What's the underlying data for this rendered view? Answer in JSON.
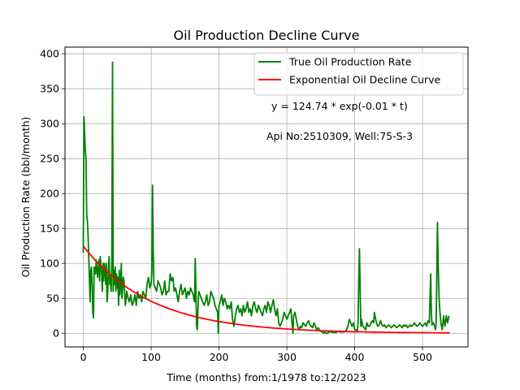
{
  "chart_data": {
    "type": "line",
    "title": "Oil Production Decline Curve",
    "xlabel": "Time (months) from:1/1978 to:12/2023",
    "ylabel": "Oil Production Rate (bbl/month)",
    "xlim": [
      -27,
      567
    ],
    "ylim": [
      -19.5,
      409.5
    ],
    "grid": true,
    "legend_position": "top-right",
    "x_ticks": [
      0,
      100,
      200,
      300,
      400,
      500
    ],
    "y_ticks": [
      0,
      50,
      100,
      150,
      200,
      250,
      300,
      350,
      400
    ],
    "annotations": [
      "y = 124.74 * exp(-0.01 * t)",
      "Api No:2510309, Well:75-S-3"
    ],
    "series": [
      {
        "name": "True Oil Production Rate",
        "color": "#008000",
        "points": [
          [
            0,
            115
          ],
          [
            1,
            310
          ],
          [
            2,
            285
          ],
          [
            3,
            260
          ],
          [
            4,
            250
          ],
          [
            5,
            170
          ],
          [
            6,
            160
          ],
          [
            7,
            140
          ],
          [
            8,
            110
          ],
          [
            9,
            75
          ],
          [
            10,
            45
          ],
          [
            11,
            90
          ],
          [
            12,
            95
          ],
          [
            13,
            70
          ],
          [
            14,
            30
          ],
          [
            15,
            22
          ],
          [
            16,
            95
          ],
          [
            17,
            90
          ],
          [
            18,
            85
          ],
          [
            19,
            105
          ],
          [
            20,
            95
          ],
          [
            21,
            80
          ],
          [
            22,
            90
          ],
          [
            23,
            105
          ],
          [
            24,
            75
          ],
          [
            25,
            110
          ],
          [
            26,
            95
          ],
          [
            27,
            85
          ],
          [
            28,
            60
          ],
          [
            29,
            100
          ],
          [
            30,
            75
          ],
          [
            31,
            100
          ],
          [
            32,
            90
          ],
          [
            33,
            70
          ],
          [
            34,
            100
          ],
          [
            35,
            45
          ],
          [
            36,
            60
          ],
          [
            37,
            90
          ],
          [
            38,
            110
          ],
          [
            39,
            70
          ],
          [
            40,
            80
          ],
          [
            41,
            60
          ],
          [
            42,
            100
          ],
          [
            43,
            388
          ],
          [
            44,
            60
          ],
          [
            45,
            90
          ],
          [
            46,
            70
          ],
          [
            47,
            95
          ],
          [
            48,
            60
          ],
          [
            49,
            85
          ],
          [
            50,
            65
          ],
          [
            51,
            80
          ],
          [
            52,
            40
          ],
          [
            53,
            90
          ],
          [
            54,
            55
          ],
          [
            55,
            70
          ],
          [
            56,
            100
          ],
          [
            57,
            50
          ],
          [
            58,
            65
          ],
          [
            59,
            80
          ],
          [
            60,
            75
          ],
          [
            62,
            40
          ],
          [
            64,
            60
          ],
          [
            66,
            50
          ],
          [
            68,
            45
          ],
          [
            70,
            55
          ],
          [
            72,
            40
          ],
          [
            74,
            45
          ],
          [
            76,
            55
          ],
          [
            78,
            40
          ],
          [
            80,
            60
          ],
          [
            82,
            50
          ],
          [
            84,
            55
          ],
          [
            86,
            45
          ],
          [
            88,
            60
          ],
          [
            90,
            55
          ],
          [
            92,
            50
          ],
          [
            94,
            70
          ],
          [
            96,
            80
          ],
          [
            98,
            65
          ],
          [
            100,
            70
          ],
          [
            101,
            90
          ],
          [
            102,
            212
          ],
          [
            103,
            120
          ],
          [
            104,
            70
          ],
          [
            106,
            65
          ],
          [
            108,
            60
          ],
          [
            110,
            75
          ],
          [
            112,
            70
          ],
          [
            114,
            65
          ],
          [
            116,
            55
          ],
          [
            118,
            60
          ],
          [
            120,
            75
          ],
          [
            122,
            55
          ],
          [
            124,
            60
          ],
          [
            126,
            60
          ],
          [
            128,
            85
          ],
          [
            130,
            75
          ],
          [
            132,
            80
          ],
          [
            134,
            60
          ],
          [
            136,
            65
          ],
          [
            138,
            55
          ],
          [
            140,
            45
          ],
          [
            142,
            60
          ],
          [
            144,
            70
          ],
          [
            146,
            55
          ],
          [
            148,
            60
          ],
          [
            150,
            65
          ],
          [
            152,
            50
          ],
          [
            154,
            60
          ],
          [
            156,
            55
          ],
          [
            158,
            65
          ],
          [
            160,
            60
          ],
          [
            162,
            55
          ],
          [
            164,
            45
          ],
          [
            165,
            107
          ],
          [
            166,
            55
          ],
          [
            167,
            10
          ],
          [
            168,
            5
          ],
          [
            170,
            60
          ],
          [
            172,
            55
          ],
          [
            174,
            50
          ],
          [
            176,
            45
          ],
          [
            178,
            40
          ],
          [
            180,
            45
          ],
          [
            182,
            55
          ],
          [
            184,
            40
          ],
          [
            186,
            45
          ],
          [
            188,
            60
          ],
          [
            190,
            55
          ],
          [
            192,
            50
          ],
          [
            194,
            40
          ],
          [
            196,
            35
          ],
          [
            198,
            30
          ],
          [
            199,
            0
          ],
          [
            200,
            40
          ],
          [
            202,
            45
          ],
          [
            204,
            55
          ],
          [
            206,
            40
          ],
          [
            208,
            50
          ],
          [
            210,
            45
          ],
          [
            212,
            35
          ],
          [
            214,
            40
          ],
          [
            216,
            35
          ],
          [
            218,
            45
          ],
          [
            220,
            20
          ],
          [
            222,
            10
          ],
          [
            224,
            25
          ],
          [
            226,
            35
          ],
          [
            228,
            40
          ],
          [
            230,
            30
          ],
          [
            232,
            35
          ],
          [
            234,
            25
          ],
          [
            236,
            40
          ],
          [
            238,
            30
          ],
          [
            240,
            35
          ],
          [
            242,
            45
          ],
          [
            244,
            30
          ],
          [
            246,
            35
          ],
          [
            248,
            25
          ],
          [
            250,
            40
          ],
          [
            252,
            45
          ],
          [
            254,
            35
          ],
          [
            256,
            30
          ],
          [
            258,
            40
          ],
          [
            260,
            35
          ],
          [
            262,
            30
          ],
          [
            264,
            25
          ],
          [
            266,
            35
          ],
          [
            268,
            40
          ],
          [
            270,
            30
          ],
          [
            272,
            45
          ],
          [
            274,
            40
          ],
          [
            276,
            30
          ],
          [
            278,
            40
          ],
          [
            280,
            48
          ],
          [
            282,
            35
          ],
          [
            284,
            25
          ],
          [
            286,
            35
          ],
          [
            288,
            15
          ],
          [
            290,
            10
          ],
          [
            292,
            15
          ],
          [
            294,
            20
          ],
          [
            296,
            30
          ],
          [
            298,
            25
          ],
          [
            300,
            20
          ],
          [
            302,
            25
          ],
          [
            304,
            30
          ],
          [
            306,
            35
          ],
          [
            308,
            10
          ],
          [
            309,
            0
          ],
          [
            310,
            25
          ],
          [
            312,
            30
          ],
          [
            314,
            20
          ],
          [
            316,
            10
          ],
          [
            318,
            5
          ],
          [
            320,
            10
          ],
          [
            322,
            8
          ],
          [
            324,
            15
          ],
          [
            326,
            12
          ],
          [
            328,
            10
          ],
          [
            330,
            15
          ],
          [
            332,
            18
          ],
          [
            334,
            12
          ],
          [
            336,
            10
          ],
          [
            338,
            8
          ],
          [
            340,
            15
          ],
          [
            342,
            10
          ],
          [
            344,
            5
          ],
          [
            346,
            8
          ],
          [
            348,
            5
          ],
          [
            350,
            3
          ],
          [
            352,
            2
          ],
          [
            354,
            0
          ],
          [
            356,
            2
          ],
          [
            358,
            0
          ],
          [
            360,
            0
          ],
          [
            362,
            2
          ],
          [
            364,
            2
          ],
          [
            366,
            2
          ],
          [
            368,
            1
          ],
          [
            370,
            2
          ],
          [
            372,
            1
          ],
          [
            374,
            2
          ],
          [
            376,
            3
          ],
          [
            378,
            2
          ],
          [
            380,
            2
          ],
          [
            382,
            2
          ],
          [
            384,
            2
          ],
          [
            386,
            3
          ],
          [
            388,
            5
          ],
          [
            390,
            10
          ],
          [
            392,
            20
          ],
          [
            394,
            15
          ],
          [
            396,
            10
          ],
          [
            398,
            15
          ],
          [
            400,
            5
          ],
          [
            402,
            5
          ],
          [
            404,
            3
          ],
          [
            405,
            15
          ],
          [
            406,
            80
          ],
          [
            407,
            121
          ],
          [
            408,
            70
          ],
          [
            409,
            10
          ],
          [
            410,
            20
          ],
          [
            412,
            10
          ],
          [
            414,
            8
          ],
          [
            416,
            5
          ],
          [
            418,
            15
          ],
          [
            420,
            10
          ],
          [
            422,
            10
          ],
          [
            424,
            15
          ],
          [
            426,
            18
          ],
          [
            428,
            15
          ],
          [
            429,
            30
          ],
          [
            430,
            25
          ],
          [
            432,
            15
          ],
          [
            434,
            10
          ],
          [
            436,
            12
          ],
          [
            438,
            18
          ],
          [
            440,
            12
          ],
          [
            442,
            10
          ],
          [
            444,
            12
          ],
          [
            446,
            8
          ],
          [
            448,
            10
          ],
          [
            450,
            12
          ],
          [
            452,
            10
          ],
          [
            454,
            8
          ],
          [
            456,
            10
          ],
          [
            458,
            12
          ],
          [
            460,
            10
          ],
          [
            462,
            8
          ],
          [
            464,
            10
          ],
          [
            466,
            12
          ],
          [
            468,
            10
          ],
          [
            470,
            8
          ],
          [
            472,
            12
          ],
          [
            474,
            10
          ],
          [
            476,
            12
          ],
          [
            478,
            8
          ],
          [
            480,
            10
          ],
          [
            482,
            12
          ],
          [
            484,
            10
          ],
          [
            486,
            12
          ],
          [
            488,
            15
          ],
          [
            490,
            12
          ],
          [
            492,
            10
          ],
          [
            494,
            12
          ],
          [
            496,
            15
          ],
          [
            498,
            12
          ],
          [
            500,
            10
          ],
          [
            502,
            12
          ],
          [
            504,
            15
          ],
          [
            506,
            10
          ],
          [
            508,
            18
          ],
          [
            510,
            15
          ],
          [
            512,
            85
          ],
          [
            513,
            30
          ],
          [
            514,
            12
          ],
          [
            516,
            15
          ],
          [
            518,
            10
          ],
          [
            519,
            5
          ],
          [
            520,
            15
          ],
          [
            521,
            80
          ],
          [
            522,
            159
          ],
          [
            523,
            100
          ],
          [
            524,
            60
          ],
          [
            525,
            40
          ],
          [
            527,
            15
          ],
          [
            529,
            5
          ],
          [
            531,
            25
          ],
          [
            533,
            10
          ],
          [
            535,
            25
          ],
          [
            537,
            15
          ],
          [
            539,
            25
          ]
        ]
      },
      {
        "name": "Exponential Oil Decline Curve",
        "color": "#ff0000",
        "equation": "y = 124.74 * exp(-0.01 * t)",
        "t_range": [
          0,
          540
        ]
      }
    ]
  }
}
